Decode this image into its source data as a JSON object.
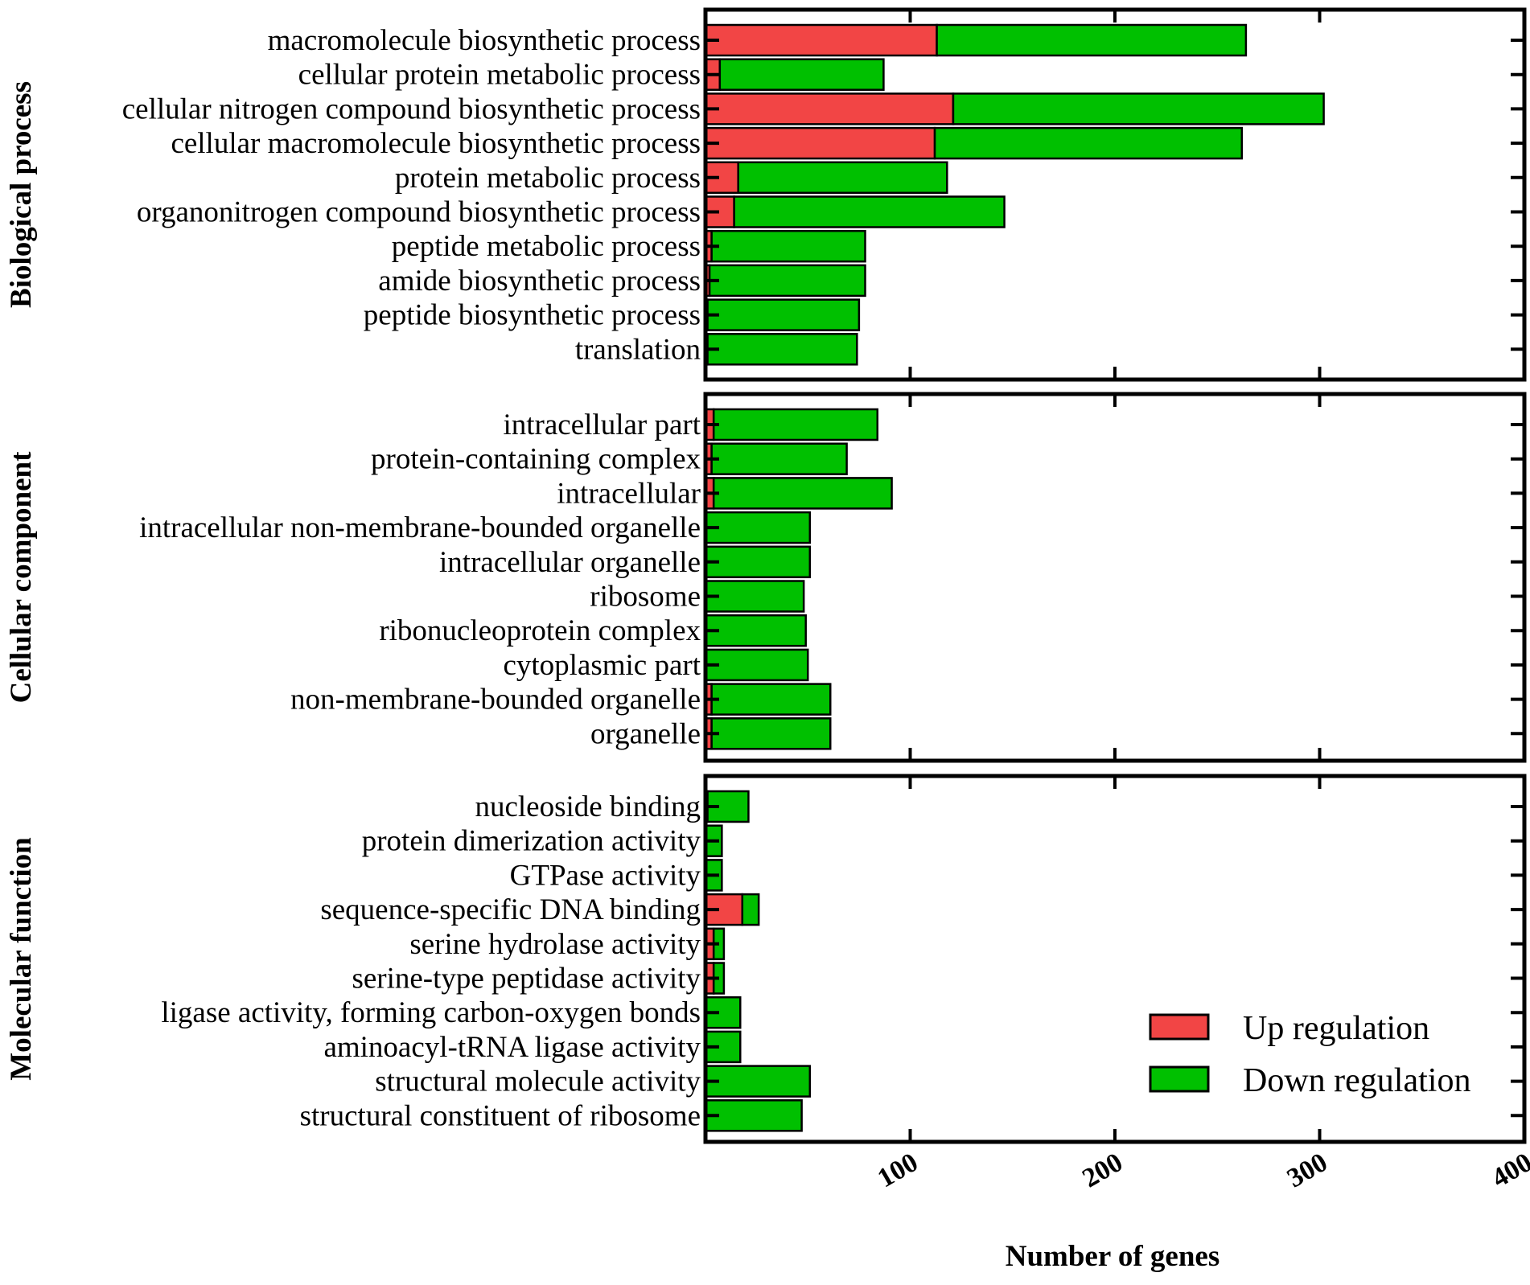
{
  "chart_data": {
    "type": "bar",
    "orientation": "horizontal",
    "stacked": true,
    "xlabel": "Number of genes",
    "xlim": [
      0,
      400
    ],
    "xticks": [
      "100",
      "200",
      "300",
      "400"
    ],
    "colors": {
      "up": "#f24545",
      "down": "#00c000",
      "frame": "#000000"
    },
    "series": [
      {
        "key": "up",
        "name": "Up regulation"
      },
      {
        "key": "down",
        "name": "Down regulation"
      }
    ],
    "panels": [
      {
        "title": "Biological process",
        "categories": [
          "macromolecule biosynthetic process",
          "cellular protein metabolic process",
          "cellular nitrogen compound biosynthetic process",
          "cellular macromolecule biosynthetic process",
          "protein metabolic process",
          "organonitrogen compound biosynthetic process",
          "peptide metabolic process",
          "amide biosynthetic process",
          "peptide biosynthetic process",
          "translation"
        ],
        "up": [
          113,
          7,
          121,
          112,
          16,
          14,
          3,
          2,
          1,
          1
        ],
        "down": [
          151,
          80,
          181,
          150,
          102,
          132,
          75,
          76,
          74,
          73
        ]
      },
      {
        "title": "Cellular component",
        "categories": [
          "intracellular part",
          "protein-containing complex",
          "intracellular",
          "intracellular non-membrane-bounded organelle",
          "intracellular organelle",
          "ribosome",
          "ribonucleoprotein complex",
          "cytoplasmic part",
          "non-membrane-bounded organelle",
          "organelle"
        ],
        "up": [
          4,
          3,
          4,
          0,
          0,
          0,
          0,
          0,
          3,
          3
        ],
        "down": [
          80,
          66,
          87,
          51,
          51,
          48,
          49,
          50,
          58,
          58
        ]
      },
      {
        "title": "Molecular function",
        "categories": [
          "nucleoside binding",
          "protein dimerization activity",
          "GTPase activity",
          "sequence-specific DNA binding",
          "serine hydrolase activity",
          "serine-type peptidase activity",
          "ligase activity, forming carbon-oxygen bonds",
          "aminoacyl-tRNA ligase activity",
          "structural molecule activity",
          "structural constituent of ribosome"
        ],
        "up": [
          1,
          0,
          0,
          18,
          4,
          4,
          0,
          0,
          0,
          0
        ],
        "down": [
          20,
          8,
          8,
          8,
          5,
          5,
          17,
          17,
          51,
          47
        ]
      }
    ]
  }
}
